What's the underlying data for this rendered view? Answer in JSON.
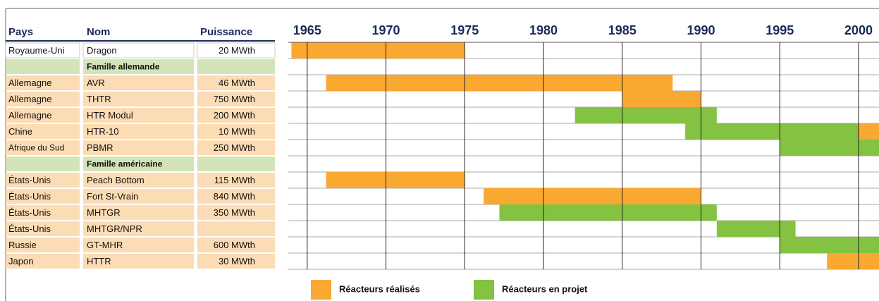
{
  "chart_data": {
    "type": "gantt",
    "columns": [
      "Pays",
      "Nom",
      "Puissance"
    ],
    "xlim": [
      1963.8,
      2001.3
    ],
    "xticks": [
      1965,
      1970,
      1975,
      1980,
      1985,
      1990,
      1995,
      2000
    ],
    "series": [
      {
        "name": "Réacteurs réalisés",
        "color": "#f9a832"
      },
      {
        "name": "Réacteurs en projet",
        "color": "#84c241"
      }
    ],
    "rows": [
      {
        "pays": "Royaume-Uni",
        "nom": "Dragon",
        "puissance": "20 MWth",
        "spans": [
          {
            "start": 1964,
            "end": 1975,
            "color": "#f9a832"
          }
        ]
      },
      {
        "group": "Famille allemande"
      },
      {
        "pays": "Allemagne",
        "nom": "AVR",
        "puissance": "46 MWth",
        "spans": [
          {
            "start": 1966.2,
            "end": 1988.2,
            "color": "#f9a832"
          }
        ]
      },
      {
        "pays": "Allemagne",
        "nom": "THTR",
        "puissance": "750 MWth",
        "spans": [
          {
            "start": 1985,
            "end": 1990,
            "color": "#f9a832"
          }
        ]
      },
      {
        "pays": "Allemagne",
        "nom": "HTR Modul",
        "puissance": "200 MWth",
        "spans": [
          {
            "start": 1982,
            "end": 1991,
            "color": "#84c241"
          }
        ]
      },
      {
        "pays": "Chine",
        "nom": "HTR-10",
        "puissance": "10 MWth",
        "spans": [
          {
            "start": 1989,
            "end": 2000,
            "color": "#84c241"
          },
          {
            "start": 2000,
            "end": 2002,
            "color": "#f9a832"
          }
        ]
      },
      {
        "pays": "Afrique du Sud",
        "nom": "PBMR",
        "puissance": "250 MWth",
        "spans": [
          {
            "start": 1995,
            "end": 2002,
            "color": "#84c241"
          }
        ]
      },
      {
        "group": "Famille américaine"
      },
      {
        "pays": "États-Unis",
        "nom": "Peach Bottom",
        "puissance": "115 MWth",
        "spans": [
          {
            "start": 1966.2,
            "end": 1975,
            "color": "#f9a832"
          }
        ]
      },
      {
        "pays": "États-Unis",
        "nom": "Fort St-Vrain",
        "puissance": "840 MWth",
        "spans": [
          {
            "start": 1976.2,
            "end": 1990,
            "color": "#f9a832"
          }
        ]
      },
      {
        "pays": "États-Unis",
        "nom": "MHTGR",
        "puissance": "350 MWth",
        "spans": [
          {
            "start": 1977.2,
            "end": 1991,
            "color": "#84c241"
          }
        ]
      },
      {
        "pays": "États-Unis",
        "nom": "MHTGR/NPR",
        "spans": [
          {
            "start": 1991,
            "end": 1996,
            "color": "#84c241"
          }
        ]
      },
      {
        "pays": "Russie",
        "nom": "GT-MHR",
        "puissance": "600 MWth",
        "spans": [
          {
            "start": 1995,
            "end": 2002,
            "color": "#84c241"
          }
        ]
      },
      {
        "pays": "Japon",
        "nom": "HTTR",
        "puissance": "30 MWth",
        "spans": [
          {
            "start": 1998,
            "end": 2002,
            "color": "#f9a832"
          }
        ]
      }
    ]
  }
}
